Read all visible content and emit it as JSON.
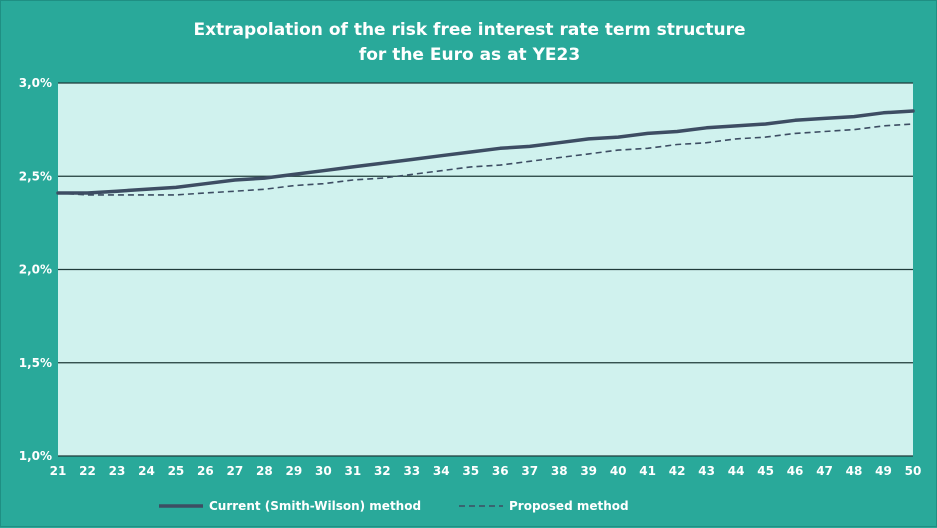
{
  "chart_data": {
    "type": "line",
    "title_lines": [
      "Extrapolation of the risk free interest rate term structure",
      "for the Euro as at YE23"
    ],
    "xlabel": "",
    "ylabel": "",
    "x": [
      21,
      22,
      23,
      24,
      25,
      26,
      27,
      28,
      29,
      30,
      31,
      32,
      33,
      34,
      35,
      36,
      37,
      38,
      39,
      40,
      41,
      42,
      43,
      44,
      45,
      46,
      47,
      48,
      49,
      50
    ],
    "x_tick_labels": [
      "21",
      "22",
      "23",
      "24",
      "25",
      "26",
      "27",
      "28",
      "29",
      "30",
      "31",
      "32",
      "33",
      "34",
      "35",
      "36",
      "37",
      "38",
      "39",
      "40",
      "41",
      "42",
      "43",
      "44",
      "45",
      "46",
      "47",
      "48",
      "49",
      "50"
    ],
    "ylim": [
      1.0,
      3.0
    ],
    "y_ticks": [
      1.0,
      1.5,
      2.0,
      2.5,
      3.0
    ],
    "y_tick_labels": [
      "1,0%",
      "1,5%",
      "2,0%",
      "2,5%",
      "3,0%"
    ],
    "grid": "horizontal",
    "legend_position": "bottom",
    "colors": {
      "background": "#29a99a",
      "plot_area": "#d0f2ee",
      "gridline": "#1f3b3a",
      "series_line": "#3d4d63"
    },
    "series": [
      {
        "name": "Current (Smith-Wilson) method",
        "style": "solid",
        "values": [
          2.41,
          2.41,
          2.42,
          2.43,
          2.44,
          2.46,
          2.48,
          2.49,
          2.51,
          2.53,
          2.55,
          2.57,
          2.59,
          2.61,
          2.63,
          2.65,
          2.66,
          2.68,
          2.7,
          2.71,
          2.73,
          2.74,
          2.76,
          2.77,
          2.78,
          2.8,
          2.81,
          2.82,
          2.84,
          2.85
        ]
      },
      {
        "name": "Proposed method",
        "style": "dashed",
        "values": [
          2.41,
          2.4,
          2.4,
          2.4,
          2.4,
          2.41,
          2.42,
          2.43,
          2.45,
          2.46,
          2.48,
          2.49,
          2.51,
          2.53,
          2.55,
          2.56,
          2.58,
          2.6,
          2.62,
          2.64,
          2.65,
          2.67,
          2.68,
          2.7,
          2.71,
          2.73,
          2.74,
          2.75,
          2.77,
          2.78
        ]
      }
    ]
  }
}
